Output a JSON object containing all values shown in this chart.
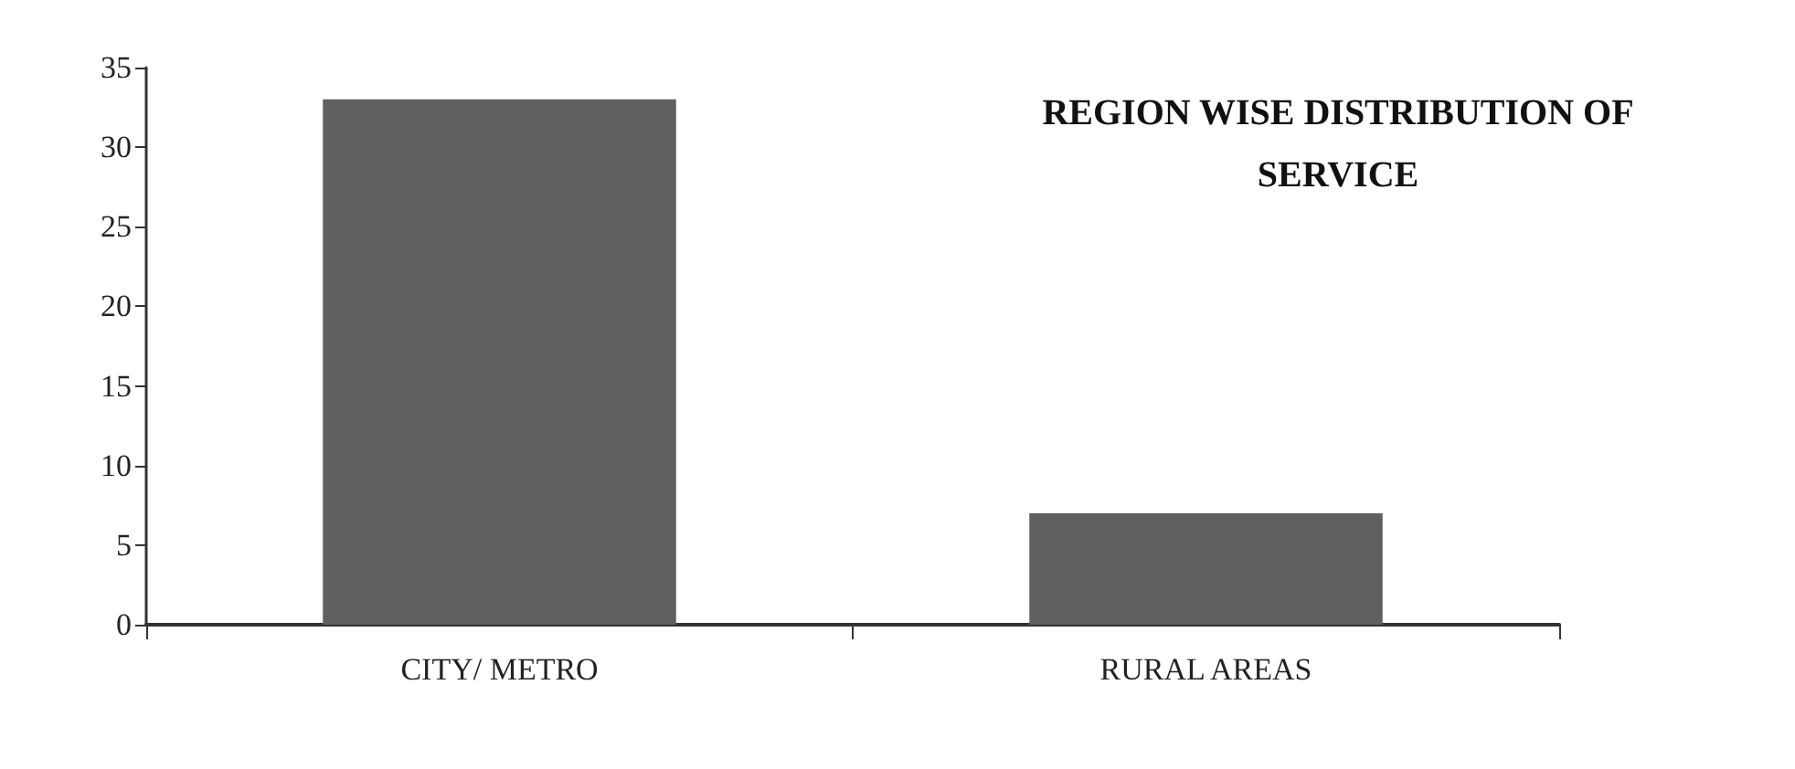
{
  "chart_data": {
    "type": "bar",
    "title": "REGION WISE DISTRIBUTION OF\nSERVICE",
    "categories": [
      "CITY/ METRO",
      "RURAL AREAS"
    ],
    "values": [
      33,
      7
    ],
    "color": "#606060",
    "ylim": [
      0,
      35
    ],
    "yticks": [
      0,
      5,
      10,
      15,
      20,
      25,
      30,
      35
    ],
    "grid": false
  }
}
